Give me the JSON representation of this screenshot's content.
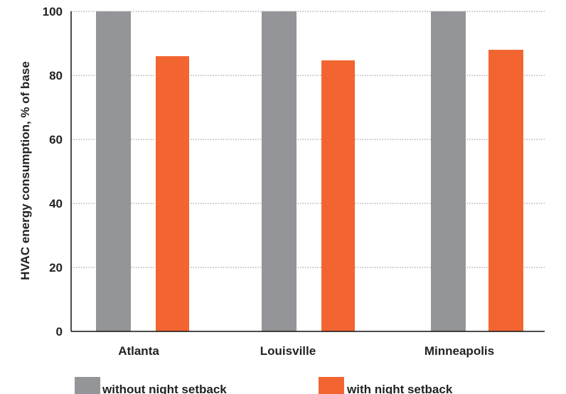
{
  "chart_data": {
    "type": "bar",
    "categories": [
      "Atlanta",
      "Louisville",
      "Minneapolis"
    ],
    "series": [
      {
        "name": "without night setback",
        "color": "#939598",
        "values": [
          100,
          100,
          100
        ]
      },
      {
        "name": "with night setback",
        "color": "#f26531",
        "values": [
          86,
          84.7,
          88
        ]
      }
    ],
    "ylabel": "HVAC energy consumption, % of base",
    "xlabel": "",
    "ylim": [
      0,
      100
    ],
    "yticks": [
      0,
      20,
      40,
      60,
      80,
      100
    ],
    "grid": true,
    "legend_position": "bottom"
  }
}
